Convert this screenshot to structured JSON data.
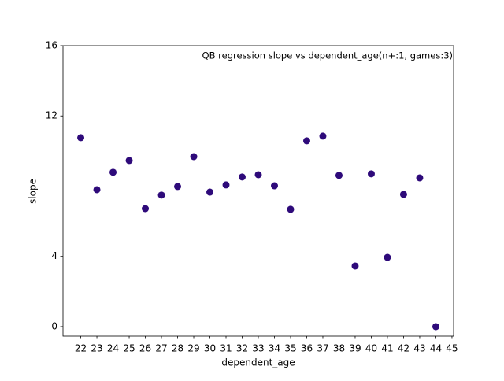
{
  "chart_data": {
    "type": "scatter",
    "title": "QB regression slope vs dependent_age(n+:1, games:3)",
    "x_label": "dependent_age",
    "y_label": "slope",
    "x": [
      22,
      23,
      24,
      25,
      26,
      27,
      28,
      29,
      30,
      31,
      32,
      33,
      34,
      35,
      36,
      37,
      38,
      39,
      40,
      41,
      42,
      43,
      44
    ],
    "series": [
      {
        "name": "slope",
        "color": "#2e0a7a",
        "values": [
          10.76,
          7.8,
          8.79,
          9.46,
          6.72,
          7.49,
          7.98,
          9.68,
          7.66,
          8.07,
          8.52,
          8.65,
          8.02,
          6.68,
          10.58,
          10.85,
          8.61,
          3.45,
          8.7,
          3.94,
          7.53,
          8.47,
          0.0
        ]
      }
    ],
    "xlim": [
      20.9,
      45.1
    ],
    "xticks": [
      22,
      23,
      24,
      25,
      26,
      27,
      28,
      29,
      30,
      31,
      32,
      33,
      34,
      35,
      36,
      37,
      38,
      39,
      40,
      41,
      42,
      43,
      44,
      45
    ],
    "ylim": [
      -0.54,
      16
    ],
    "yticks": [
      0,
      4,
      12,
      16
    ]
  }
}
